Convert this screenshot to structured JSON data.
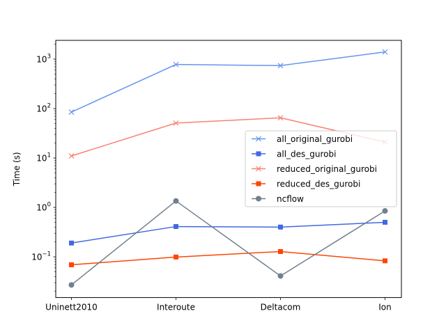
{
  "chart_data": {
    "type": "line",
    "title": "",
    "xlabel": "",
    "ylabel": "Time (s)",
    "yscale": "log",
    "ylim": [
      0.015,
      2400
    ],
    "grid": false,
    "legend_position": "right",
    "categories": [
      "Uninett2010",
      "Interoute",
      "Deltacom",
      "Ion"
    ],
    "y_ticks": [
      {
        "value": 0.1,
        "base": "10",
        "exp": "−1"
      },
      {
        "value": 1,
        "base": "10",
        "exp": "0"
      },
      {
        "value": 10,
        "base": "10",
        "exp": "1"
      },
      {
        "value": 100,
        "base": "10",
        "exp": "2"
      },
      {
        "value": 1000,
        "base": "10",
        "exp": "3"
      }
    ],
    "series": [
      {
        "name": "all_original_gurobi",
        "color": "#6495ed",
        "marker": "x",
        "values": [
          85,
          780,
          740,
          1400
        ]
      },
      {
        "name": "all_des_gurobi",
        "color": "#4169e1",
        "marker": "square",
        "values": [
          0.19,
          0.41,
          0.4,
          0.5
        ]
      },
      {
        "name": "reduced_original_gurobi",
        "color": "#fa8072",
        "marker": "x",
        "values": [
          11,
          51,
          65,
          21
        ]
      },
      {
        "name": "reduced_des_gurobi",
        "color": "#ff4500",
        "marker": "square",
        "values": [
          0.069,
          0.099,
          0.128,
          0.083
        ]
      },
      {
        "name": "ncflow",
        "color": "#708090",
        "marker": "circle",
        "values": [
          0.027,
          1.35,
          0.041,
          0.85
        ]
      }
    ]
  }
}
